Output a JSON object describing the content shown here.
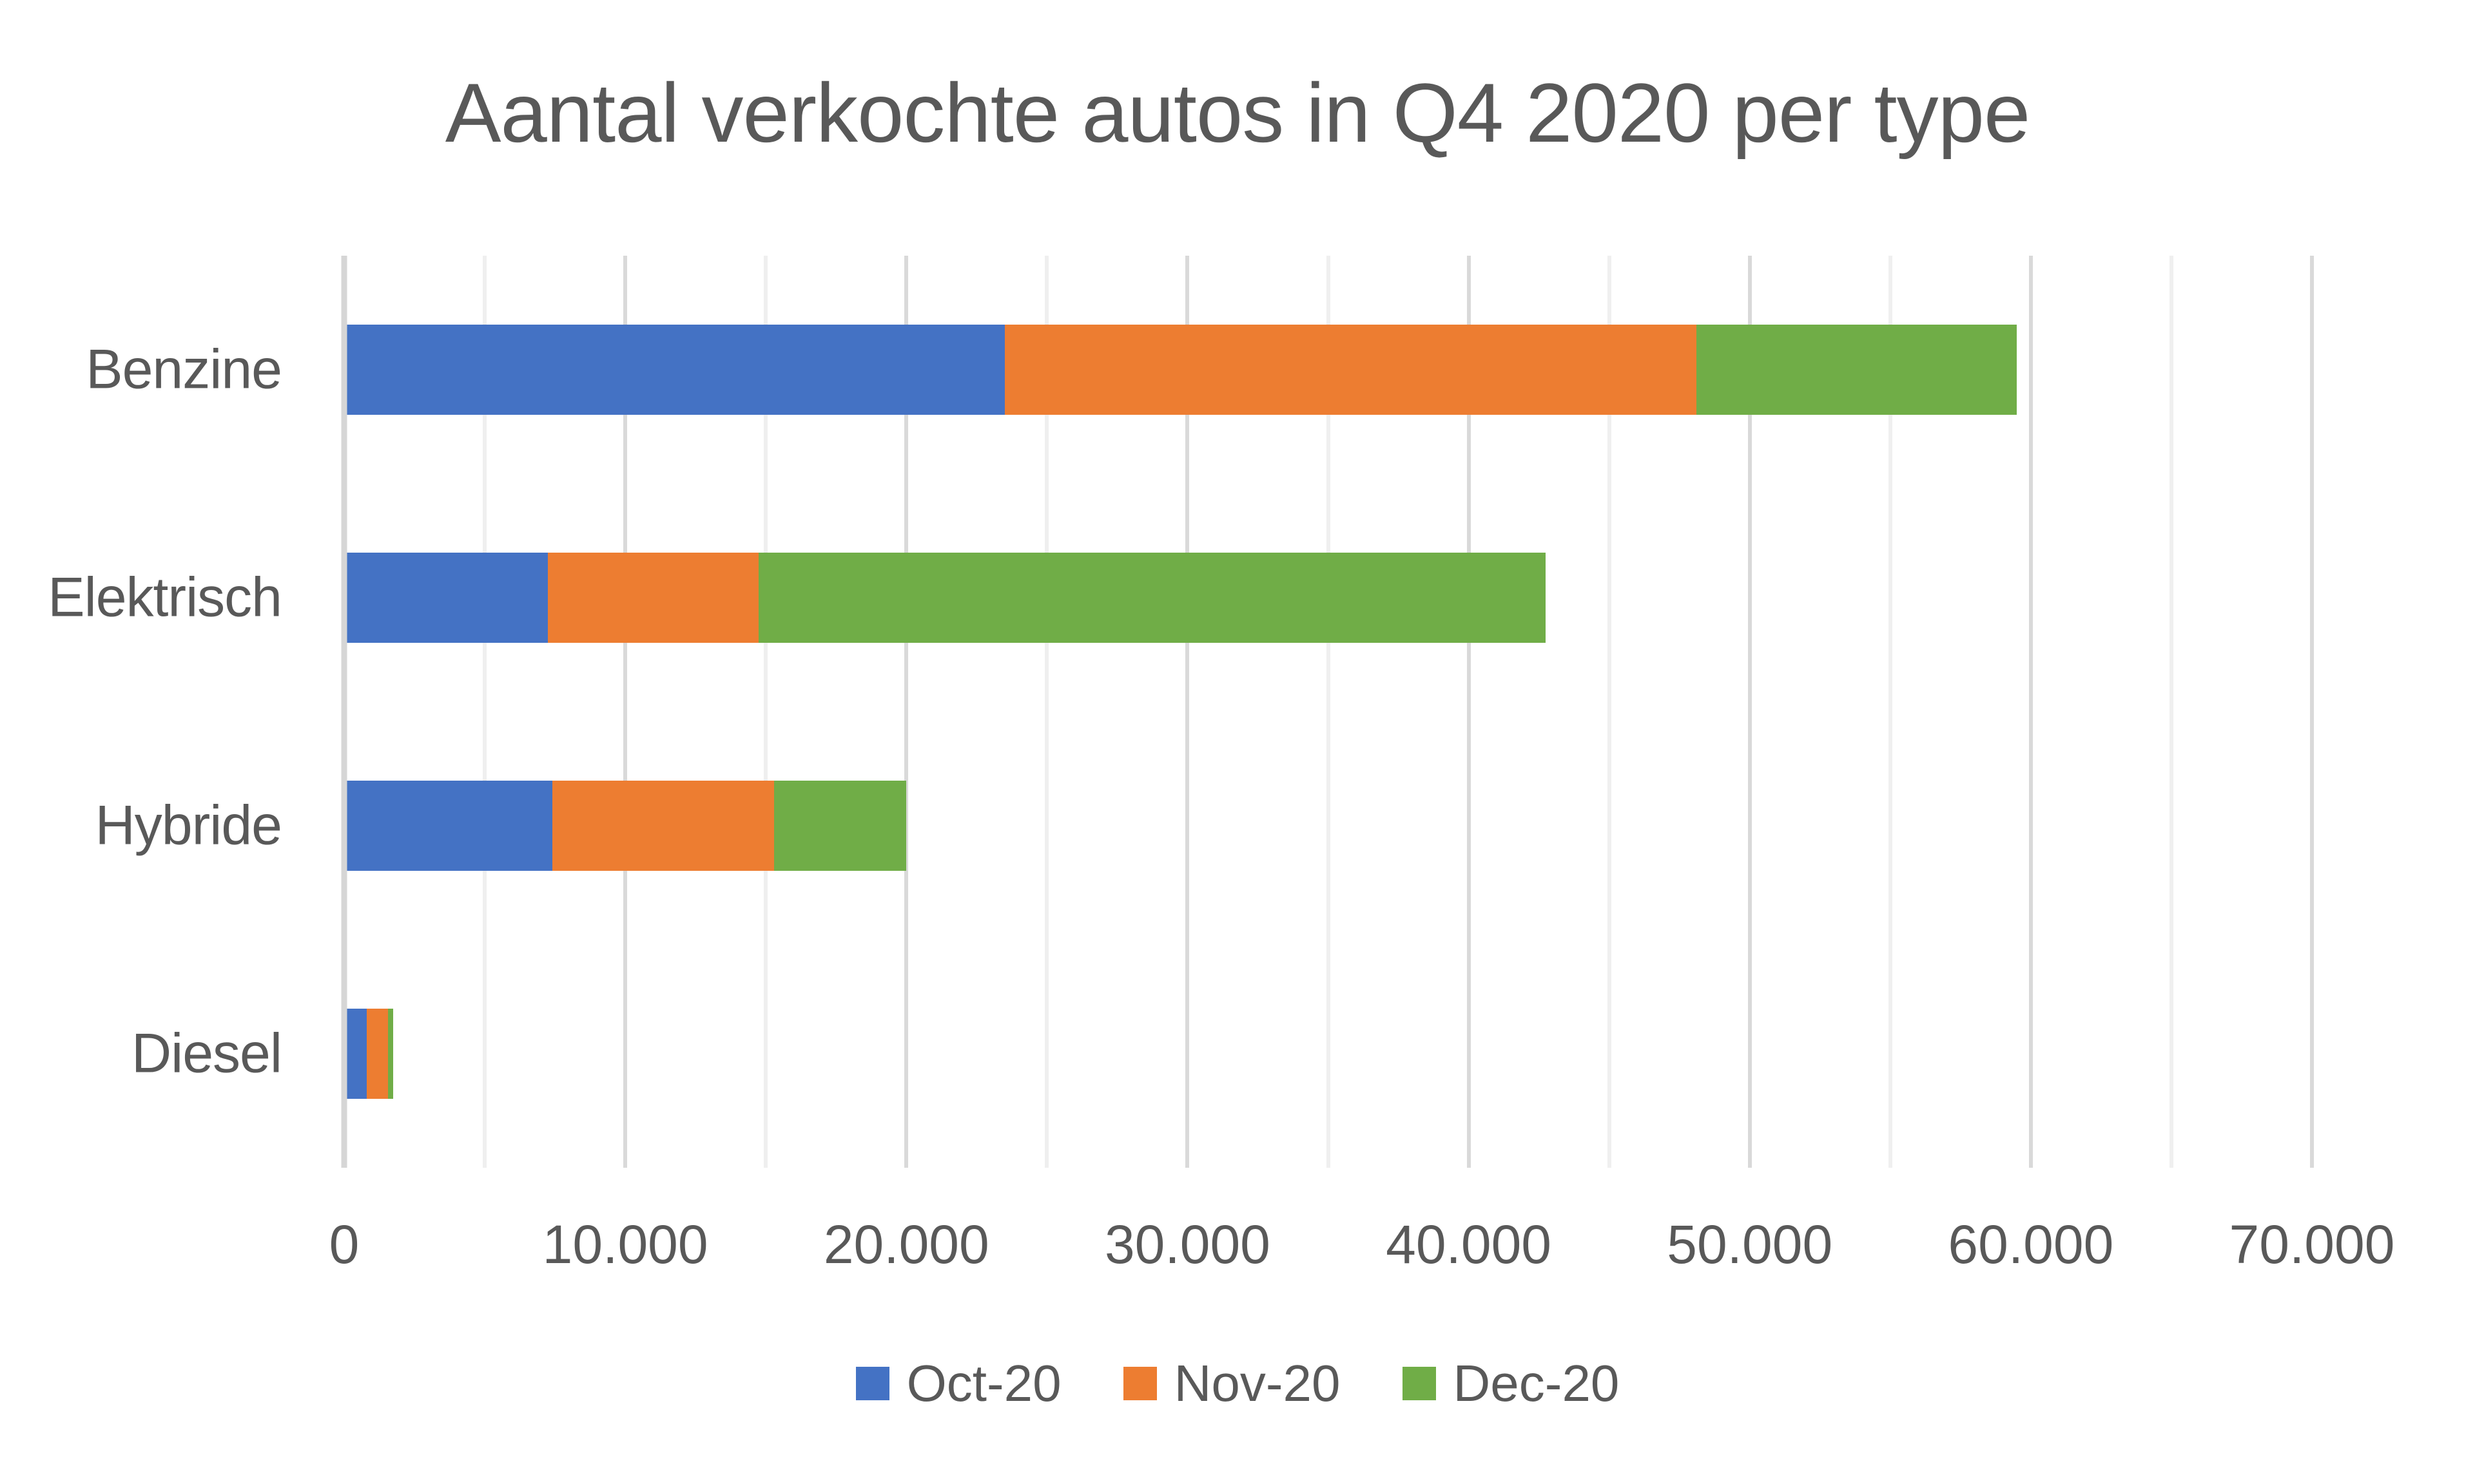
{
  "chart_data": {
    "type": "bar",
    "orientation": "horizontal",
    "stacked": true,
    "title": "Aantal verkochte autos in Q4 2020 per type",
    "categories": [
      "Benzine",
      "Elektrisch",
      "Hybride",
      "Diesel"
    ],
    "series": [
      {
        "name": "Oct-20",
        "color": "#4472C4",
        "values": [
          23500,
          7250,
          7400,
          800
        ]
      },
      {
        "name": "Nov-20",
        "color": "#ED7D31",
        "values": [
          24600,
          7500,
          7900,
          750
        ]
      },
      {
        "name": "Dec-20",
        "color": "#70AD47",
        "values": [
          11400,
          28000,
          4700,
          200
        ]
      }
    ],
    "totals": [
      59500,
      42750,
      20000,
      1750
    ],
    "xlabel": "",
    "ylabel": "",
    "xlim": [
      0,
      70000
    ],
    "major_unit": 10000,
    "minor_unit": 5000,
    "x_tick_labels": [
      "0",
      "10.000",
      "20.000",
      "30.000",
      "40.000",
      "50.000",
      "60.000",
      "70.000"
    ],
    "grid": "vertical major and minor gridlines",
    "legend_position": "bottom"
  },
  "style": {
    "background": "#FFFFFF",
    "text_color": "#595959",
    "major_gridline_color": "#D9D9D9",
    "minor_gridline_color": "#EFEFEF",
    "axis_line_color": "#D6D6D6"
  }
}
